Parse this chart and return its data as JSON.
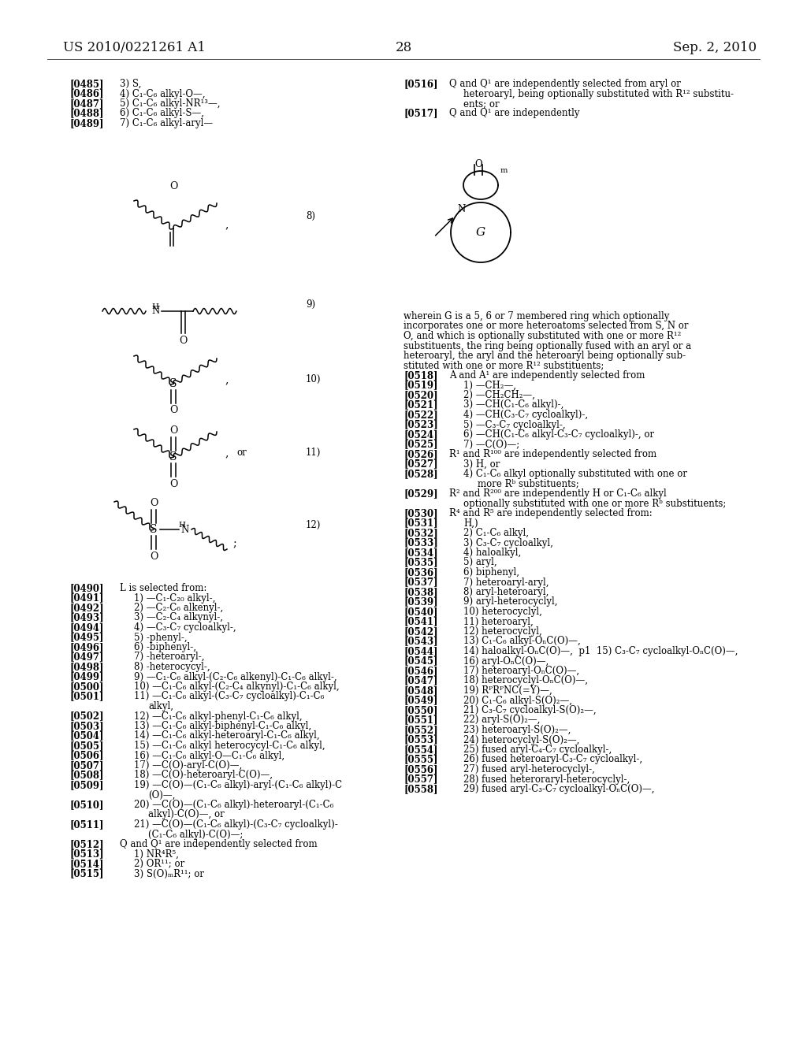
{
  "bg_color": "#ffffff",
  "header_left": "US 2010/0221261 A1",
  "header_center": "28",
  "header_right": "Sep. 2, 2010",
  "font_size": 8.5,
  "tag_font_size": 8.5,
  "left_top_lines": [
    {
      "tag": "[0485]",
      "text": "3) S,"
    },
    {
      "tag": "[0486]",
      "text": "4) C₁-C₆ alkyl-O—,"
    },
    {
      "tag": "[0487]",
      "text": "5) C₁-C₆ alkyl-NR¹³—,"
    },
    {
      "tag": "[0488]",
      "text": "6) C₁-C₆ alkyl-S—,"
    },
    {
      "tag": "[0489]",
      "text": "7) C₁-C₆ alkyl-aryl—"
    }
  ],
  "left_bottom_lines": [
    {
      "tag": "[0490]",
      "indent": 0,
      "text": "L is selected from:"
    },
    {
      "tag": "[0491]",
      "indent": 1,
      "text": "1) —C₁-C₂₀ alkyl-,"
    },
    {
      "tag": "[0492]",
      "indent": 1,
      "text": "2) —C₂-C₆ alkenyl-,"
    },
    {
      "tag": "[0493]",
      "indent": 1,
      "text": "3) —C₂-C₄ alkynyl-,"
    },
    {
      "tag": "[0494]",
      "indent": 1,
      "text": "4) —C₃-C₇ cycloalkyl-,"
    },
    {
      "tag": "[0495]",
      "indent": 1,
      "text": "5) -phenyl-,"
    },
    {
      "tag": "[0496]",
      "indent": 1,
      "text": "6) -biphenyl-,"
    },
    {
      "tag": "[0497]",
      "indent": 1,
      "text": "7) -heteroaryl-,"
    },
    {
      "tag": "[0498]",
      "indent": 1,
      "text": "8) -heterocycyl-,"
    },
    {
      "tag": "[0499]",
      "indent": 1,
      "text": "9) —C₁-C₆ alkyl-(C₂-C₆ alkenyl)-C₁-C₆ alkyl-,"
    },
    {
      "tag": "[0500]",
      "indent": 1,
      "text": "10) —C₁-C₆ alkyl-(C₂-C₄ alkynyl)-C₁-C₆ alkyl,"
    },
    {
      "tag": "[0501]",
      "indent": 1,
      "text": "11) —C₁-C₆ alkyl-(C₃-C₇ cycloalkyl)-C₁-C₆"
    },
    {
      "tag": "",
      "indent": 2,
      "text": "alkyl,"
    },
    {
      "tag": "[0502]",
      "indent": 1,
      "text": "12) —C₁-C₆ alkyl-phenyl-C₁-C₆ alkyl,"
    },
    {
      "tag": "[0503]",
      "indent": 1,
      "text": "13) —C₁-C₆ alkyl-biphenyl-C₁-C₆ alkyl,"
    },
    {
      "tag": "[0504]",
      "indent": 1,
      "text": "14) —C₁-C₆ alkyl-heteroaryl-C₁-C₆ alkyl,"
    },
    {
      "tag": "[0505]",
      "indent": 1,
      "text": "15) —C₁-C₆ alkyl heterocycyl-C₁-C₆ alkyl,"
    },
    {
      "tag": "[0506]",
      "indent": 1,
      "text": "16) —C₁-C₆ alkyl-O—C₁-C₆ alkyl,"
    },
    {
      "tag": "[0507]",
      "indent": 1,
      "text": "17) —C(O)-aryl-C(O)—,"
    },
    {
      "tag": "[0508]",
      "indent": 1,
      "text": "18) —C(O)-heteroaryl-C(O)—,"
    },
    {
      "tag": "[0509]",
      "indent": 1,
      "text": "19) —C(O)—(C₁-C₆ alkyl)-aryl-(C₁-C₆ alkyl)-C"
    },
    {
      "tag": "",
      "indent": 2,
      "text": "(O)—,"
    },
    {
      "tag": "[0510]",
      "indent": 1,
      "text": "20) —C(O)—(C₁-C₆ alkyl)-heteroaryl-(C₁-C₆"
    },
    {
      "tag": "",
      "indent": 2,
      "text": "alkyl)-C(O)—, or"
    },
    {
      "tag": "[0511]",
      "indent": 1,
      "text": "21) —C(O)—(C₁-C₆ alkyl)-(C₃-C₇ cycloalkyl)-"
    },
    {
      "tag": "",
      "indent": 2,
      "text": "(C₁-C₆ alkyl)-C(O)—;"
    },
    {
      "tag": "[0512]",
      "indent": 0,
      "text": "Q and Q¹ are independently selected from"
    },
    {
      "tag": "[0513]",
      "indent": 1,
      "text": "1) NR⁴R⁵,"
    },
    {
      "tag": "[0514]",
      "indent": 1,
      "text": "2) OR¹¹; or"
    },
    {
      "tag": "[0515]",
      "indent": 1,
      "text": "3) S(O)ₘR¹¹; or"
    }
  ],
  "right_top_lines": [
    {
      "tag": "[0516]",
      "indent": 0,
      "text": "Q and Q¹ are independently selected from aryl or"
    },
    {
      "tag": "",
      "indent": 1,
      "text": "heteroaryl, being optionally substituted with R¹² substitu-"
    },
    {
      "tag": "",
      "indent": 1,
      "text": "ents; or"
    },
    {
      "tag": "[0517]",
      "indent": 0,
      "text": "Q and Q¹ are independently"
    }
  ],
  "right_bottom_lines": [
    {
      "tag": "",
      "indent": -1,
      "text": "wherein G is a 5, 6 or 7 membered ring which optionally"
    },
    {
      "tag": "",
      "indent": -1,
      "text": "incorporates one or more heteroatoms selected from S, N or"
    },
    {
      "tag": "",
      "indent": -1,
      "text": "O, and which is optionally substituted with one or more R¹²"
    },
    {
      "tag": "",
      "indent": -1,
      "text": "substituents, the ring being optionally fused with an aryl or a"
    },
    {
      "tag": "",
      "indent": -1,
      "text": "heteroaryl, the aryl and the heteroaryl being optionally sub-"
    },
    {
      "tag": "",
      "indent": -1,
      "text": "stituted with one or more R¹² substituents;"
    },
    {
      "tag": "[0518]",
      "indent": 0,
      "text": "A and A¹ are independently selected from"
    },
    {
      "tag": "[0519]",
      "indent": 1,
      "text": "1) —CH₂—,"
    },
    {
      "tag": "[0520]",
      "indent": 1,
      "text": "2) —CH₂CH₂—,"
    },
    {
      "tag": "[0521]",
      "indent": 1,
      "text": "3) —CH(C₁-C₆ alkyl)-,"
    },
    {
      "tag": "[0522]",
      "indent": 1,
      "text": "4) —CH(C₃-C₇ cycloalkyl)-,"
    },
    {
      "tag": "[0523]",
      "indent": 1,
      "text": "5) —C₃-C₇ cycloalkyl-,"
    },
    {
      "tag": "[0524]",
      "indent": 1,
      "text": "6) —CH(C₁-C₆ alkyl-C₃-C₇ cycloalkyl)-, or"
    },
    {
      "tag": "[0525]",
      "indent": 1,
      "text": "7) —C(O)—;"
    },
    {
      "tag": "[0526]",
      "indent": 0,
      "text": "R¹ and R¹⁰⁰ are independently selected from"
    },
    {
      "tag": "[0527]",
      "indent": 1,
      "text": "3) H, or"
    },
    {
      "tag": "[0528]",
      "indent": 1,
      "text": "4) C₁-C₆ alkyl optionally substituted with one or"
    },
    {
      "tag": "",
      "indent": 2,
      "text": "more Rᵇ substituents;"
    },
    {
      "tag": "[0529]",
      "indent": 0,
      "text": "R² and R²⁰⁰ are independently H or C₁-C₆ alkyl"
    },
    {
      "tag": "",
      "indent": 1,
      "text": "optionally substituted with one or more Rᵇ substituents;"
    },
    {
      "tag": "[0530]",
      "indent": 0,
      "text": "R⁴ and R⁵ are independently selected from:"
    },
    {
      "tag": "[0531]",
      "indent": 1,
      "text": "H,)"
    },
    {
      "tag": "[0532]",
      "indent": 1,
      "text": "2) C₁-C₆ alkyl,"
    },
    {
      "tag": "[0533]",
      "indent": 1,
      "text": "3) C₃-C₇ cycloalkyl,"
    },
    {
      "tag": "[0534]",
      "indent": 1,
      "text": "4) haloalkyl,"
    },
    {
      "tag": "[0535]",
      "indent": 1,
      "text": "5) aryl,"
    },
    {
      "tag": "[0536]",
      "indent": 1,
      "text": "6) biphenyl,"
    },
    {
      "tag": "[0537]",
      "indent": 1,
      "text": "7) heteroaryl-aryl,"
    },
    {
      "tag": "[0538]",
      "indent": 1,
      "text": "8) aryl-heteroaryl,"
    },
    {
      "tag": "[0539]",
      "indent": 1,
      "text": "9) aryl-heterocyclyl,"
    },
    {
      "tag": "[0540]",
      "indent": 1,
      "text": "10) heterocyclyl,"
    },
    {
      "tag": "[0541]",
      "indent": 1,
      "text": "11) heteroaryl,"
    },
    {
      "tag": "[0542]",
      "indent": 1,
      "text": "12) heterocyclyl,"
    },
    {
      "tag": "[0543]",
      "indent": 1,
      "text": "13) C₁-C₆ alkyl-OₙC(O)—,"
    },
    {
      "tag": "[0544]",
      "indent": 1,
      "text": "14) haloalkyl-OₙC(O)—,  p1  15) C₃-C₇ cycloalkyl-OₙC(O)—,"
    },
    {
      "tag": "[0545]",
      "indent": 1,
      "text": "16) aryl-OₙC(O)—,"
    },
    {
      "tag": "[0546]",
      "indent": 1,
      "text": "17) heteroaryl-OₙC(O)—,"
    },
    {
      "tag": "[0547]",
      "indent": 1,
      "text": "18) heterocyclyl-OₙC(O)—,"
    },
    {
      "tag": "[0548]",
      "indent": 1,
      "text": "19) RᴾRᴾNC(=Y)—,"
    },
    {
      "tag": "[0549]",
      "indent": 1,
      "text": "20) C₁-C₆ alkyl-S(O)₂—,"
    },
    {
      "tag": "[0550]",
      "indent": 1,
      "text": "21) C₃-C₇ cycloalkyl-S(O)₂—,"
    },
    {
      "tag": "[0551]",
      "indent": 1,
      "text": "22) aryl-S(O)₂—,"
    },
    {
      "tag": "[0552]",
      "indent": 1,
      "text": "23) heteroaryl-S(O)₂—,"
    },
    {
      "tag": "[0553]",
      "indent": 1,
      "text": "24) heterocyclyl-S(O)₂—,"
    },
    {
      "tag": "[0554]",
      "indent": 1,
      "text": "25) fused aryl-C₄-C₇ cycloalkyl-,"
    },
    {
      "tag": "[0555]",
      "indent": 1,
      "text": "26) fused heteroaryl-C₃-C₇ cycloalkyl-,"
    },
    {
      "tag": "[0556]",
      "indent": 1,
      "text": "27) fused aryl-heterocyclyl-,"
    },
    {
      "tag": "[0557]",
      "indent": 1,
      "text": "28) fused heteroraryl-heterocyclyl-,"
    },
    {
      "tag": "[0558]",
      "indent": 1,
      "text": "29) fused aryl-C₃-C₇ cycloalkyl-OₙC(O)—,"
    }
  ]
}
